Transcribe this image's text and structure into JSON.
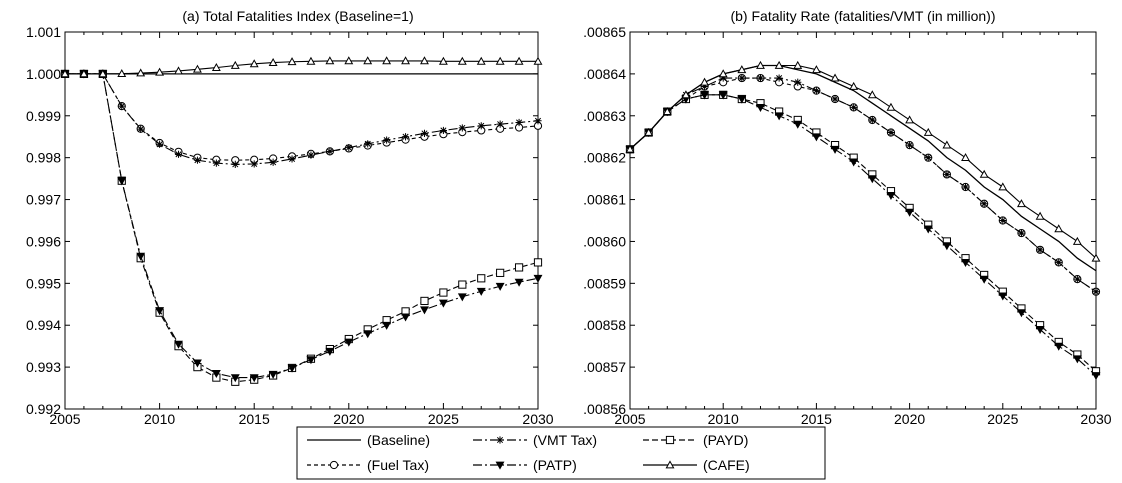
{
  "chart_data": [
    {
      "type": "line",
      "title": "(a) Total Fatalities Index (Baseline=1)",
      "x": [
        2005,
        2006,
        2007,
        2008,
        2009,
        2010,
        2011,
        2012,
        2013,
        2014,
        2015,
        2016,
        2017,
        2018,
        2019,
        2020,
        2021,
        2022,
        2023,
        2024,
        2025,
        2026,
        2027,
        2028,
        2029,
        2030
      ],
      "xlim": [
        2005,
        2030
      ],
      "ylim": [
        0.992,
        1.001
      ],
      "xticks": [
        "2005",
        "2010",
        "2015",
        "2020",
        "2025",
        "2030"
      ],
      "yticks": [
        "0.992",
        "0.993",
        "0.994",
        "0.995",
        "0.996",
        "0.997",
        "0.998",
        "0.999",
        "1.000",
        "1.001"
      ],
      "grid": false,
      "series": [
        {
          "name": "(Baseline)",
          "values": [
            1,
            1,
            1,
            1,
            1,
            1,
            1,
            1,
            1,
            1,
            1,
            1,
            1,
            1,
            1,
            1,
            1,
            1,
            1,
            1,
            1,
            1,
            1,
            1,
            1,
            1
          ]
        },
        {
          "name": "(Fuel Tax)",
          "values": [
            1,
            1,
            1,
            0.99923,
            0.99869,
            0.99835,
            0.99814,
            0.998,
            0.99795,
            0.99794,
            0.99795,
            0.99798,
            0.99803,
            0.99809,
            0.99815,
            0.99822,
            0.99829,
            0.99836,
            0.99843,
            0.9985,
            0.99856,
            0.99861,
            0.99865,
            0.99869,
            0.99872,
            0.99876
          ]
        },
        {
          "name": "(VMT Tax)",
          "values": [
            1,
            1,
            1,
            0.99923,
            0.99868,
            0.99832,
            0.99808,
            0.99794,
            0.99787,
            0.99784,
            0.99785,
            0.99789,
            0.99797,
            0.99806,
            0.99815,
            0.99824,
            0.99833,
            0.99842,
            0.9985,
            0.99858,
            0.99865,
            0.99871,
            0.99876,
            0.9988,
            0.99884,
            0.99888
          ]
        },
        {
          "name": "(PATP)",
          "values": [
            1,
            1,
            1,
            0.99745,
            0.99565,
            0.99435,
            0.99355,
            0.9931,
            0.99285,
            0.99275,
            0.99275,
            0.99283,
            0.99298,
            0.99318,
            0.99338,
            0.9936,
            0.9938,
            0.994,
            0.9942,
            0.99437,
            0.99453,
            0.99468,
            0.99481,
            0.99493,
            0.99503,
            0.99512
          ]
        },
        {
          "name": "(PAYD)",
          "values": [
            1,
            1,
            1,
            0.99745,
            0.9956,
            0.9943,
            0.9935,
            0.993,
            0.99275,
            0.99265,
            0.9927,
            0.9928,
            0.99298,
            0.9932,
            0.99343,
            0.99367,
            0.9939,
            0.99412,
            0.99433,
            0.99458,
            0.99478,
            0.99497,
            0.99512,
            0.99525,
            0.99538,
            0.9955
          ]
        },
        {
          "name": "(CAFE)",
          "values": [
            1,
            1,
            1,
            1.000005,
            1.00002,
            1.00004,
            1.00007,
            1.00011,
            1.00015,
            1.0002,
            1.00024,
            1.00027,
            1.00029,
            1.0003,
            1.00031,
            1.00031,
            1.00031,
            1.00031,
            1.00031,
            1.00031,
            1.0003,
            1.0003,
            1.0003,
            1.0003,
            1.0003,
            1.0003
          ]
        }
      ]
    },
    {
      "type": "line",
      "title": "(b) Fatality Rate (fatalities/VMT (in million))",
      "x": [
        2005,
        2006,
        2007,
        2008,
        2009,
        2010,
        2011,
        2012,
        2013,
        2014,
        2015,
        2016,
        2017,
        2018,
        2019,
        2020,
        2021,
        2022,
        2023,
        2024,
        2025,
        2026,
        2027,
        2028,
        2029,
        2030
      ],
      "xlim": [
        2005,
        2030
      ],
      "ylim": [
        0.00856,
        0.00865
      ],
      "xticks": [
        "2005",
        "2010",
        "2015",
        "2020",
        "2025",
        "2030"
      ],
      "yticks": [
        ".00856",
        ".00857",
        ".00858",
        ".00859",
        ".00860",
        ".00861",
        ".00862",
        ".00863",
        ".00864",
        ".00865"
      ],
      "grid": false,
      "series": [
        {
          "name": "(Baseline)",
          "values": [
            0.008622,
            0.008626,
            0.008631,
            0.008635,
            0.008638,
            0.00864,
            0.008641,
            0.008642,
            0.008642,
            0.008641,
            0.00864,
            0.008638,
            0.008636,
            0.008633,
            0.00863,
            0.008627,
            0.008624,
            0.00862,
            0.008617,
            0.008613,
            0.00861,
            0.008606,
            0.008603,
            0.0086,
            0.008596,
            0.008593
          ]
        },
        {
          "name": "(Fuel Tax)",
          "values": [
            0.008622,
            0.008626,
            0.008631,
            0.008634,
            0.008637,
            0.008638,
            0.008639,
            0.008639,
            0.008638,
            0.008637,
            0.008636,
            0.008634,
            0.008632,
            0.008629,
            0.008626,
            0.008623,
            0.00862,
            0.008616,
            0.008613,
            0.008609,
            0.008605,
            0.008602,
            0.008598,
            0.008595,
            0.008591,
            0.008588
          ]
        },
        {
          "name": "(VMT Tax)",
          "values": [
            0.008622,
            0.008626,
            0.008631,
            0.008635,
            0.008637,
            0.008639,
            0.008639,
            0.008639,
            0.008639,
            0.008638,
            0.008636,
            0.008634,
            0.008632,
            0.008629,
            0.008626,
            0.008623,
            0.00862,
            0.008616,
            0.008613,
            0.008609,
            0.008605,
            0.008602,
            0.008598,
            0.008595,
            0.008591,
            0.008588
          ]
        },
        {
          "name": "(PATP)",
          "values": [
            0.008622,
            0.008626,
            0.008631,
            0.008634,
            0.008635,
            0.008635,
            0.008634,
            0.008632,
            0.00863,
            0.008628,
            0.008625,
            0.008622,
            0.008619,
            0.008615,
            0.008611,
            0.008607,
            0.008603,
            0.008599,
            0.008595,
            0.008591,
            0.008587,
            0.008583,
            0.008579,
            0.008575,
            0.008572,
            0.008568
          ]
        },
        {
          "name": "(PAYD)",
          "values": [
            0.008622,
            0.008626,
            0.008631,
            0.008634,
            0.008635,
            0.008635,
            0.008634,
            0.008633,
            0.008631,
            0.008629,
            0.008626,
            0.008623,
            0.00862,
            0.008616,
            0.008612,
            0.008608,
            0.008604,
            0.0086,
            0.008596,
            0.008592,
            0.008588,
            0.008584,
            0.00858,
            0.008576,
            0.008573,
            0.008569
          ]
        },
        {
          "name": "(CAFE)",
          "values": [
            0.008622,
            0.008626,
            0.008631,
            0.008635,
            0.008638,
            0.00864,
            0.008641,
            0.008642,
            0.008642,
            0.008642,
            0.008641,
            0.008639,
            0.008637,
            0.008635,
            0.008632,
            0.008629,
            0.008626,
            0.008623,
            0.00862,
            0.008616,
            0.008613,
            0.008609,
            0.008606,
            0.008603,
            0.0086,
            0.008596
          ]
        }
      ]
    }
  ],
  "legend": {
    "position": "bottom-center",
    "columns": 3,
    "items": [
      {
        "label": "(Baseline)",
        "marker": "none",
        "dash": "solid"
      },
      {
        "label": "(VMT Tax)",
        "marker": "star",
        "dash": "longdash"
      },
      {
        "label": "(PAYD)",
        "marker": "square",
        "dash": "dash"
      },
      {
        "label": "(Fuel Tax)",
        "marker": "circle",
        "dash": "shortdash"
      },
      {
        "label": "(PATP)",
        "marker": "triangle-down",
        "dash": "dashdot"
      },
      {
        "label": "(CAFE)",
        "marker": "triangle-up",
        "dash": "solid"
      }
    ]
  }
}
